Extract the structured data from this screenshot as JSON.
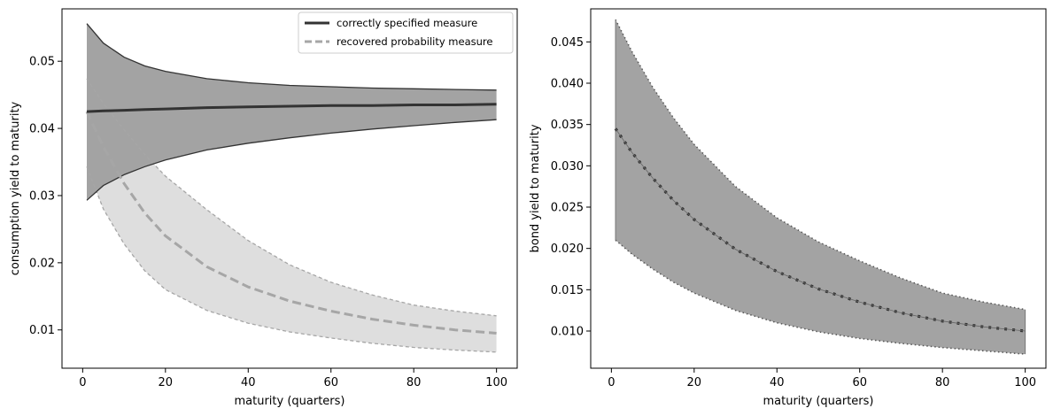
{
  "chart_data": [
    {
      "type": "line",
      "xlabel": "maturity (quarters)",
      "ylabel": "consumption yield to maturity",
      "xlim": [
        -5,
        105
      ],
      "ylim": [
        0.0043,
        0.0578
      ],
      "xticks": [
        0,
        20,
        40,
        60,
        80,
        100
      ],
      "yticks": [
        0.01,
        0.02,
        0.03,
        0.04,
        0.05
      ],
      "xtick_labels": [
        "0",
        "20",
        "40",
        "60",
        "80",
        "100"
      ],
      "ytick_labels": [
        "0.01",
        "0.02",
        "0.03",
        "0.04",
        "0.05"
      ],
      "legend": {
        "location": "top-right",
        "entries": [
          {
            "label": "correctly specified measure",
            "series": "correct"
          },
          {
            "label": "recovered probability measure",
            "series": "recovered"
          }
        ]
      },
      "x": [
        1,
        5,
        10,
        15,
        20,
        30,
        40,
        50,
        60,
        70,
        80,
        90,
        100
      ],
      "series": [
        {
          "name": "correctly specified measure",
          "key": "correct",
          "color": "#333333",
          "style": "solid",
          "band_color": "#a3a3a3",
          "mean": [
            0.0425,
            0.0426,
            0.0427,
            0.0428,
            0.0429,
            0.0431,
            0.0432,
            0.0433,
            0.0434,
            0.0434,
            0.0435,
            0.0435,
            0.0436
          ],
          "upper": [
            0.0556,
            0.0527,
            0.0506,
            0.0493,
            0.0485,
            0.0474,
            0.0468,
            0.0464,
            0.0462,
            0.046,
            0.0459,
            0.0458,
            0.0457
          ],
          "lower": [
            0.0293,
            0.0315,
            0.0331,
            0.0343,
            0.0353,
            0.0368,
            0.0378,
            0.0386,
            0.0393,
            0.0399,
            0.0404,
            0.0409,
            0.0413
          ]
        },
        {
          "name": "recovered probability measure",
          "key": "recovered",
          "color": "#a6a6a6",
          "style": "dashed",
          "band_color": "#dedede",
          "mean": [
            0.0425,
            0.0373,
            0.0318,
            0.0274,
            0.024,
            0.0194,
            0.0164,
            0.0143,
            0.0128,
            0.0116,
            0.0107,
            0.01,
            0.0095
          ],
          "upper": [
            0.0474,
            0.0437,
            0.0398,
            0.0361,
            0.0329,
            0.0279,
            0.0233,
            0.0197,
            0.0171,
            0.0152,
            0.0137,
            0.0128,
            0.0121
          ],
          "lower": [
            0.0343,
            0.028,
            0.0228,
            0.0188,
            0.016,
            0.0129,
            0.011,
            0.0097,
            0.0088,
            0.008,
            0.0074,
            0.007,
            0.0067
          ]
        }
      ]
    },
    {
      "type": "line",
      "xlabel": "maturity (quarters)",
      "ylabel": "bond yield to maturity",
      "xlim": [
        -5,
        105
      ],
      "ylim": [
        0.0055,
        0.049
      ],
      "xticks": [
        0,
        20,
        40,
        60,
        80,
        100
      ],
      "yticks": [
        0.01,
        0.015,
        0.02,
        0.025,
        0.03,
        0.035,
        0.04,
        0.045
      ],
      "xtick_labels": [
        "0",
        "20",
        "40",
        "60",
        "80",
        "100"
      ],
      "ytick_labels": [
        "0.010",
        "0.015",
        "0.020",
        "0.025",
        "0.030",
        "0.035",
        "0.040",
        "0.045"
      ],
      "x": [
        1,
        5,
        10,
        15,
        20,
        30,
        40,
        50,
        60,
        70,
        80,
        90,
        100
      ],
      "series": [
        {
          "name": "bond yield",
          "key": "bond",
          "color": "#333333",
          "style": "dotted",
          "band_color": "#a3a3a3",
          "mean": [
            0.0345,
            0.0316,
            0.0285,
            0.0258,
            0.0235,
            0.0199,
            0.0172,
            0.0151,
            0.0135,
            0.0122,
            0.0112,
            0.0105,
            0.01
          ],
          "upper": [
            0.0477,
            0.0438,
            0.0395,
            0.0358,
            0.0326,
            0.0275,
            0.0237,
            0.0208,
            0.0185,
            0.0164,
            0.0146,
            0.0135,
            0.0126
          ],
          "lower": [
            0.021,
            0.0193,
            0.0175,
            0.0159,
            0.0146,
            0.0125,
            0.011,
            0.0099,
            0.0091,
            0.0085,
            0.008,
            0.0076,
            0.0072
          ]
        }
      ]
    }
  ]
}
